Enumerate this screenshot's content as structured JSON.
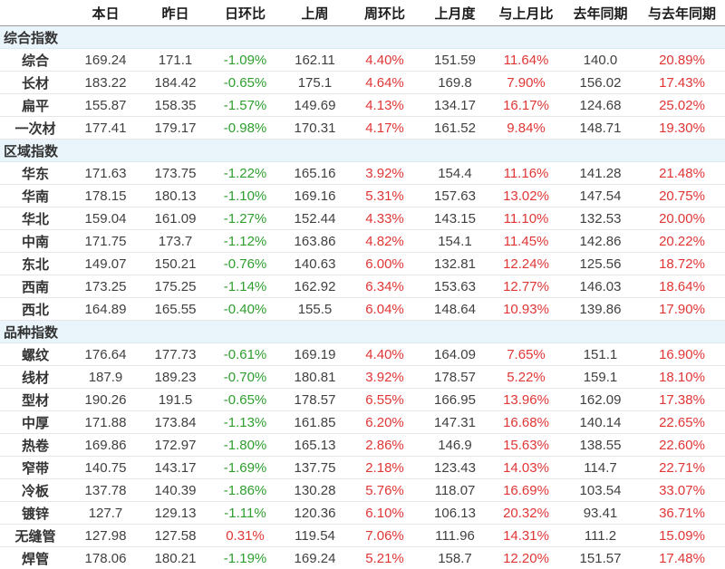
{
  "colors": {
    "positive_red": "#e03636",
    "negative_green": "#2e9e2e",
    "section_row_background": "#e9f4fb"
  },
  "chart_data": {
    "type": "table",
    "columns": [
      "",
      "本日",
      "昨日",
      "日环比",
      "上周",
      "周环比",
      "上月度",
      "与上月比",
      "去年同期",
      "与去年同期"
    ],
    "groups": [
      {
        "label": "综合指数",
        "rows": [
          {
            "label": "综合",
            "values": [
              "169.24",
              "171.1",
              "-1.09%",
              "162.11",
              "4.40%",
              "151.59",
              "11.64%",
              "140.0",
              "20.89%"
            ]
          },
          {
            "label": "长材",
            "values": [
              "183.22",
              "184.42",
              "-0.65%",
              "175.1",
              "4.64%",
              "169.8",
              "7.90%",
              "156.02",
              "17.43%"
            ]
          },
          {
            "label": "扁平",
            "values": [
              "155.87",
              "158.35",
              "-1.57%",
              "149.69",
              "4.13%",
              "134.17",
              "16.17%",
              "124.68",
              "25.02%"
            ]
          },
          {
            "label": "一次材",
            "values": [
              "177.41",
              "179.17",
              "-0.98%",
              "170.31",
              "4.17%",
              "161.52",
              "9.84%",
              "148.71",
              "19.30%"
            ]
          }
        ]
      },
      {
        "label": "区域指数",
        "rows": [
          {
            "label": "华东",
            "values": [
              "171.63",
              "173.75",
              "-1.22%",
              "165.16",
              "3.92%",
              "154.4",
              "11.16%",
              "141.28",
              "21.48%"
            ]
          },
          {
            "label": "华南",
            "values": [
              "178.15",
              "180.13",
              "-1.10%",
              "169.16",
              "5.31%",
              "157.63",
              "13.02%",
              "147.54",
              "20.75%"
            ]
          },
          {
            "label": "华北",
            "values": [
              "159.04",
              "161.09",
              "-1.27%",
              "152.44",
              "4.33%",
              "143.15",
              "11.10%",
              "132.53",
              "20.00%"
            ]
          },
          {
            "label": "中南",
            "values": [
              "171.75",
              "173.7",
              "-1.12%",
              "163.86",
              "4.82%",
              "154.1",
              "11.45%",
              "142.86",
              "20.22%"
            ]
          },
          {
            "label": "东北",
            "values": [
              "149.07",
              "150.21",
              "-0.76%",
              "140.63",
              "6.00%",
              "132.81",
              "12.24%",
              "125.56",
              "18.72%"
            ]
          },
          {
            "label": "西南",
            "values": [
              "173.25",
              "175.25",
              "-1.14%",
              "162.92",
              "6.34%",
              "153.63",
              "12.77%",
              "146.03",
              "18.64%"
            ]
          },
          {
            "label": "西北",
            "values": [
              "164.89",
              "165.55",
              "-0.40%",
              "155.5",
              "6.04%",
              "148.64",
              "10.93%",
              "139.86",
              "17.90%"
            ]
          }
        ]
      },
      {
        "label": "品种指数",
        "rows": [
          {
            "label": "螺纹",
            "values": [
              "176.64",
              "177.73",
              "-0.61%",
              "169.19",
              "4.40%",
              "164.09",
              "7.65%",
              "151.1",
              "16.90%"
            ]
          },
          {
            "label": "线材",
            "values": [
              "187.9",
              "189.23",
              "-0.70%",
              "180.81",
              "3.92%",
              "178.57",
              "5.22%",
              "159.1",
              "18.10%"
            ]
          },
          {
            "label": "型材",
            "values": [
              "190.26",
              "191.5",
              "-0.65%",
              "178.57",
              "6.55%",
              "166.95",
              "13.96%",
              "162.09",
              "17.38%"
            ]
          },
          {
            "label": "中厚",
            "values": [
              "171.88",
              "173.84",
              "-1.13%",
              "161.85",
              "6.20%",
              "147.31",
              "16.68%",
              "140.14",
              "22.65%"
            ]
          },
          {
            "label": "热卷",
            "values": [
              "169.86",
              "172.97",
              "-1.80%",
              "165.13",
              "2.86%",
              "146.9",
              "15.63%",
              "138.55",
              "22.60%"
            ]
          },
          {
            "label": "窄带",
            "values": [
              "140.75",
              "143.17",
              "-1.69%",
              "137.75",
              "2.18%",
              "123.43",
              "14.03%",
              "114.7",
              "22.71%"
            ]
          },
          {
            "label": "冷板",
            "values": [
              "137.78",
              "140.39",
              "-1.86%",
              "130.28",
              "5.76%",
              "118.07",
              "16.69%",
              "103.54",
              "33.07%"
            ]
          },
          {
            "label": "镀锌",
            "values": [
              "127.7",
              "129.13",
              "-1.11%",
              "120.36",
              "6.10%",
              "106.13",
              "20.32%",
              "93.41",
              "36.71%"
            ]
          },
          {
            "label": "无缝管",
            "values": [
              "127.98",
              "127.58",
              "0.31%",
              "119.54",
              "7.06%",
              "111.96",
              "14.31%",
              "111.2",
              "15.09%"
            ]
          },
          {
            "label": "焊管",
            "values": [
              "178.06",
              "180.21",
              "-1.19%",
              "169.24",
              "5.21%",
              "158.7",
              "12.20%",
              "151.57",
              "17.48%"
            ]
          }
        ]
      }
    ]
  }
}
